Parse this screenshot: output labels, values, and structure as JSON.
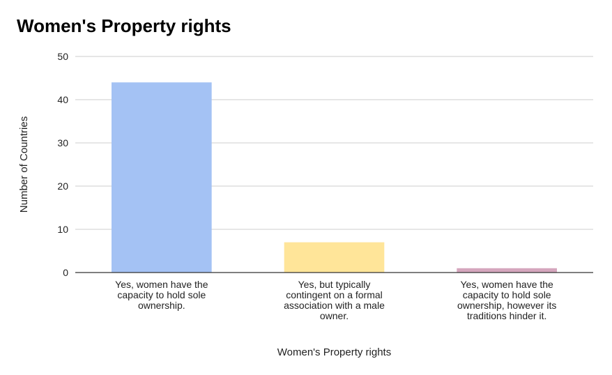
{
  "chart_data": {
    "type": "bar",
    "title": "Women's Property rights",
    "xlabel": "Women's Property rights",
    "ylabel": "Number of Countries",
    "ylim": [
      0,
      50
    ],
    "yticks": [
      0,
      10,
      20,
      30,
      40,
      50
    ],
    "grid": true,
    "legend": "none",
    "categories": [
      [
        "Yes, women have the",
        "capacity to hold sole",
        "ownership."
      ],
      [
        "Yes, but typically",
        "contingent on a formal",
        "association with a male",
        "owner."
      ],
      [
        "Yes, women have the",
        "capacity to hold sole",
        "ownership, however its",
        "traditions hinder it."
      ]
    ],
    "values": [
      44,
      7,
      1
    ],
    "colors": [
      "#a4c2f4",
      "#ffe599",
      "#d5a6bd"
    ]
  }
}
